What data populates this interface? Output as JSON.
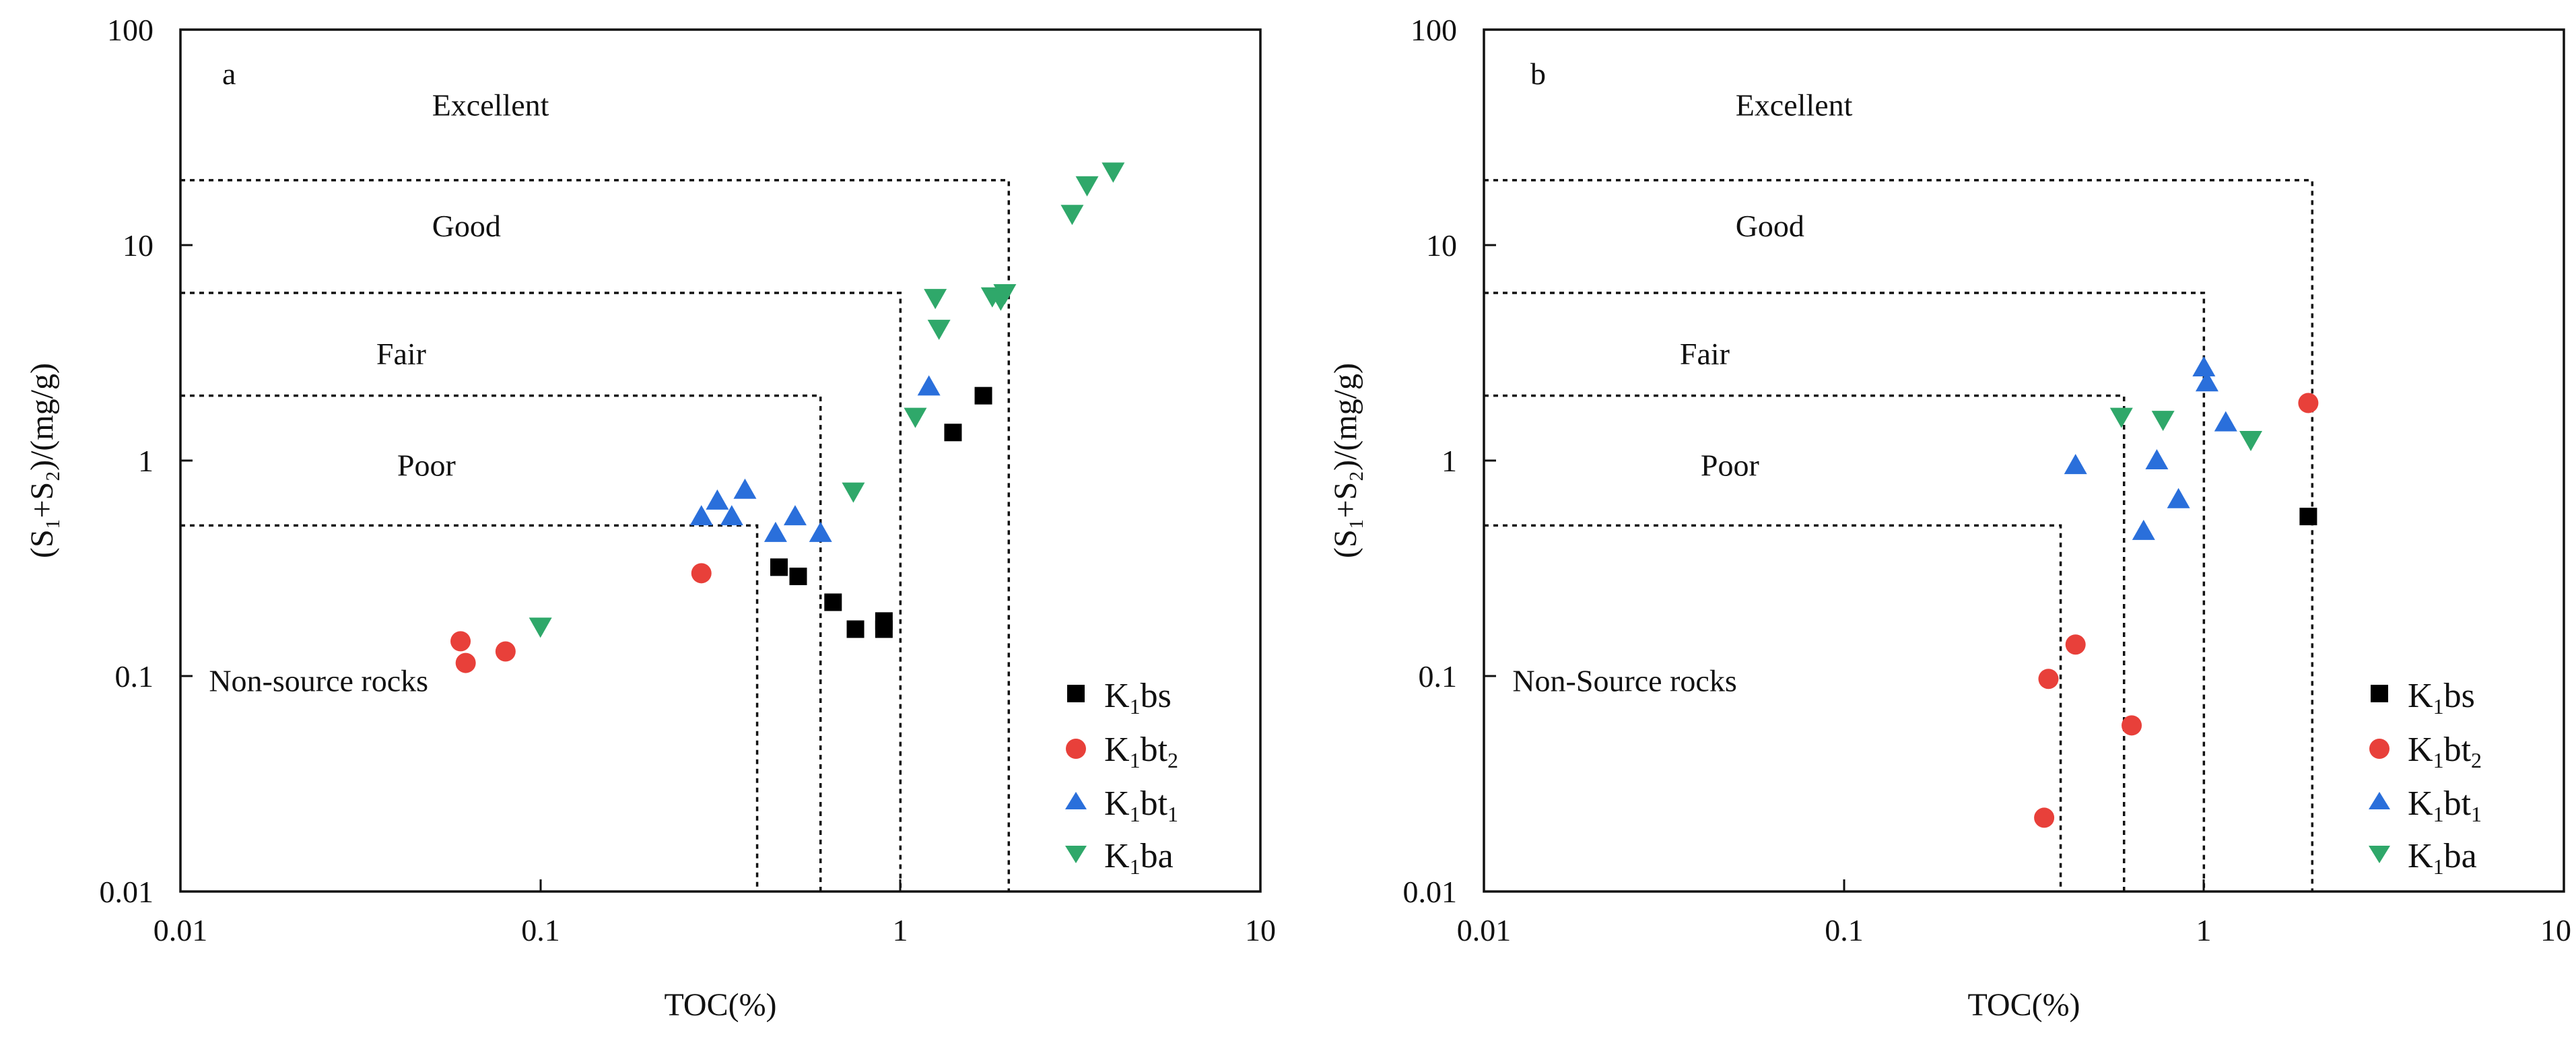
{
  "chart_data": [
    {
      "type": "scatter",
      "panel": "a",
      "xlabel": "TOC(%)",
      "ylabel": "(S₁+S₂)/(mg/g)",
      "xscale": "log",
      "yscale": "log",
      "xlim": [
        0.01,
        10
      ],
      "ylim": [
        0.01,
        100
      ],
      "xticks": [
        0.01,
        0.1,
        1,
        10
      ],
      "xtick_labels": [
        "0.01",
        "0.1",
        "1",
        "10"
      ],
      "yticks": [
        0.01,
        0.1,
        1,
        10,
        100
      ],
      "ytick_labels": [
        "0.01",
        "0.1",
        "1",
        "10",
        "100"
      ],
      "regions": [
        {
          "label": "Excellent",
          "at": [
            0.05,
            40
          ]
        },
        {
          "label": "Good",
          "at": [
            0.05,
            11
          ]
        },
        {
          "label": "Fair",
          "at": [
            0.035,
            2.8
          ]
        },
        {
          "label": "Poor",
          "at": [
            0.04,
            0.85
          ]
        },
        {
          "label": "Non-source rocks",
          "at": [
            0.012,
            0.085
          ]
        }
      ],
      "boundaries": [
        {
          "toc": 0.4,
          "s": 0.5
        },
        {
          "toc": 0.6,
          "s": 2
        },
        {
          "toc": 1,
          "s": 6
        },
        {
          "toc": 2,
          "s": 20
        }
      ],
      "legend_position": "bottom-right",
      "series": [
        {
          "name": "K1bs",
          "label_main": "K",
          "label_sub": "1",
          "label_rest": "bs",
          "label_sub2": "",
          "marker": "square",
          "color": "#000000",
          "points": [
            [
              0.46,
              0.32
            ],
            [
              0.52,
              0.29
            ],
            [
              0.65,
              0.22
            ],
            [
              0.75,
              0.165
            ],
            [
              0.9,
              0.165
            ],
            [
              0.9,
              0.18
            ],
            [
              1.4,
              1.35
            ],
            [
              1.7,
              2.0
            ]
          ]
        },
        {
          "name": "K1bt2",
          "label_main": "K",
          "label_sub": "1",
          "label_rest": "bt",
          "label_sub2": "2",
          "marker": "circle",
          "color": "#e8403a",
          "points": [
            [
              0.06,
              0.145
            ],
            [
              0.062,
              0.115
            ],
            [
              0.08,
              0.13
            ],
            [
              0.28,
              0.3
            ]
          ]
        },
        {
          "name": "K1bt1",
          "label_main": "K",
          "label_sub": "1",
          "label_rest": "bt",
          "label_sub2": "1",
          "marker": "triangle-up",
          "color": "#2a6fdb",
          "points": [
            [
              0.28,
              0.55
            ],
            [
              0.31,
              0.65
            ],
            [
              0.34,
              0.55
            ],
            [
              0.37,
              0.73
            ],
            [
              0.45,
              0.46
            ],
            [
              0.51,
              0.55
            ],
            [
              0.6,
              0.46
            ],
            [
              1.2,
              2.2
            ]
          ]
        },
        {
          "name": "K1ba",
          "label_main": "K",
          "label_sub": "1",
          "label_rest": "ba",
          "label_sub2": "",
          "marker": "triangle-down",
          "color": "#2fa86a",
          "points": [
            [
              0.1,
              0.17
            ],
            [
              0.74,
              0.72
            ],
            [
              1.1,
              1.6
            ],
            [
              1.25,
              5.7
            ],
            [
              1.28,
              4.1
            ],
            [
              1.8,
              5.8
            ],
            [
              1.9,
              5.6
            ],
            [
              1.95,
              6.0
            ],
            [
              3.0,
              14
            ],
            [
              3.3,
              19
            ],
            [
              3.9,
              22
            ]
          ]
        }
      ]
    },
    {
      "type": "scatter",
      "panel": "b",
      "xlabel": "TOC(%)",
      "ylabel": "(S₁+S₂)/(mg/g)",
      "xscale": "log",
      "yscale": "log",
      "xlim": [
        0.01,
        10
      ],
      "ylim": [
        0.01,
        100
      ],
      "xticks": [
        0.01,
        0.1,
        1,
        10
      ],
      "xtick_labels": [
        "0.01",
        "0.1",
        "1",
        "10"
      ],
      "yticks": [
        0.01,
        0.1,
        1,
        10,
        100
      ],
      "ytick_labels": [
        "0.01",
        "0.1",
        "1",
        "10",
        "100"
      ],
      "regions": [
        {
          "label": "Excellent",
          "at": [
            0.05,
            40
          ]
        },
        {
          "label": "Good",
          "at": [
            0.05,
            11
          ]
        },
        {
          "label": "Fair",
          "at": [
            0.035,
            2.8
          ]
        },
        {
          "label": "Poor",
          "at": [
            0.04,
            0.85
          ]
        },
        {
          "label": "Non-Source rocks",
          "at": [
            0.012,
            0.085
          ]
        }
      ],
      "boundaries": [
        {
          "toc": 0.4,
          "s": 0.5
        },
        {
          "toc": 0.6,
          "s": 2
        },
        {
          "toc": 1,
          "s": 6
        },
        {
          "toc": 2,
          "s": 20
        }
      ],
      "legend_position": "bottom-right",
      "series": [
        {
          "name": "K1bs",
          "label_main": "K",
          "label_sub": "1",
          "label_rest": "bs",
          "label_sub2": "",
          "marker": "square",
          "color": "#000000",
          "points": [
            [
              1.95,
              0.55
            ]
          ]
        },
        {
          "name": "K1bt2",
          "label_main": "K",
          "label_sub": "1",
          "label_rest": "bt",
          "label_sub2": "2",
          "marker": "circle",
          "color": "#e8403a",
          "points": [
            [
              0.36,
              0.022
            ],
            [
              0.37,
              0.097
            ],
            [
              0.44,
              0.14
            ],
            [
              0.63,
              0.059
            ],
            [
              1.95,
              1.85
            ]
          ]
        },
        {
          "name": "K1bt1",
          "label_main": "K",
          "label_sub": "1",
          "label_rest": "bt",
          "label_sub2": "1",
          "marker": "triangle-up",
          "color": "#2a6fdb",
          "points": [
            [
              0.44,
              0.95
            ],
            [
              0.68,
              0.47
            ],
            [
              0.74,
              1.0
            ],
            [
              0.85,
              0.66
            ],
            [
              1.0,
              2.7
            ],
            [
              1.02,
              2.3
            ],
            [
              1.15,
              1.5
            ]
          ]
        },
        {
          "name": "K1ba",
          "label_main": "K",
          "label_sub": "1",
          "label_rest": "ba",
          "label_sub2": "",
          "marker": "triangle-down",
          "color": "#2fa86a",
          "points": [
            [
              0.59,
              1.6
            ],
            [
              0.77,
              1.55
            ],
            [
              1.35,
              1.25
            ]
          ]
        }
      ]
    }
  ]
}
